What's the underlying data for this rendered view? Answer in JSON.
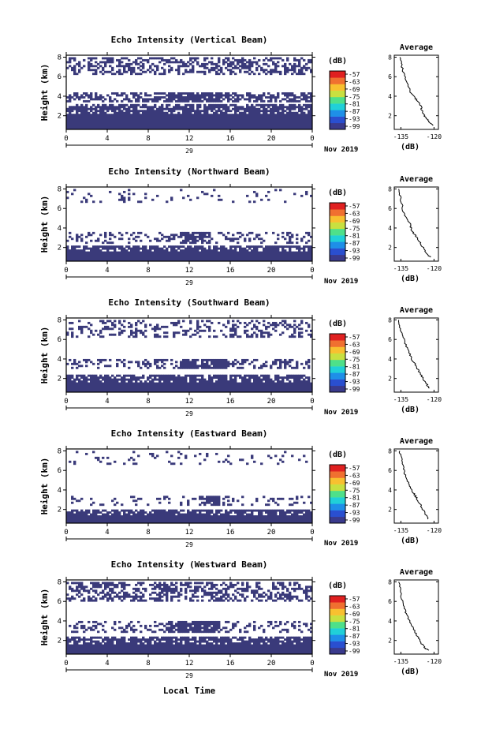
{
  "figure": {
    "xlabel": "Local Time",
    "colorbar_unit": "(dB)",
    "colorbar_ticks": [
      "-57",
      "-63",
      "-69",
      "-75",
      "-81",
      "-87",
      "-93",
      "-99"
    ],
    "colorbar_colors": [
      "#3a3a8c",
      "#2a4fd0",
      "#1e8fe8",
      "#20d0d8",
      "#4ee08a",
      "#c8e040",
      "#f8c030",
      "#f07030",
      "#e02020"
    ],
    "date_label": "Nov 2019",
    "day_label": "29",
    "mask_color": "#3a3a7a"
  },
  "chart_data": [
    {
      "type": "heatmap",
      "title": "Echo Intensity (Vertical Beam)",
      "ylabel": "Height (km)",
      "x_ticks": [
        "0",
        "4",
        "8",
        "12",
        "16",
        "20",
        "0"
      ],
      "y_ticks": [
        "2",
        "4",
        "6",
        "8"
      ],
      "xlim": [
        0,
        24
      ],
      "ylim": [
        0.6,
        8.2
      ],
      "profile": {
        "title": "Average",
        "xlabel": "(dB)",
        "x_ticks": [
          "-135",
          "-120"
        ],
        "y_ticks": [
          "2",
          "4",
          "6",
          "8"
        ],
        "xlim": [
          -138,
          -118
        ],
        "ylim": [
          0.6,
          8.2
        ],
        "x": [
          -135.5,
          -135,
          -134.5,
          -133.8,
          -133,
          -132,
          -131,
          -130,
          -129,
          -128,
          -127,
          -126,
          -125.5,
          -125,
          -124,
          -123,
          -122,
          -120.5
        ],
        "y": [
          8,
          7.5,
          7,
          6.4,
          5.8,
          5.2,
          4.6,
          4.2,
          3.9,
          3.7,
          3.4,
          3.0,
          2.6,
          2.2,
          1.9,
          1.6,
          1.3,
          1.0
        ]
      }
    },
    {
      "type": "heatmap",
      "title": "Echo Intensity (Northward Beam)",
      "ylabel": "Height (km)",
      "x_ticks": [
        "0",
        "4",
        "8",
        "12",
        "16",
        "20",
        "0"
      ],
      "y_ticks": [
        "2",
        "4",
        "6",
        "8"
      ],
      "xlim": [
        0,
        24
      ],
      "ylim": [
        0.6,
        8.2
      ],
      "profile": {
        "title": "Average",
        "xlabel": "(dB)",
        "x_ticks": [
          "-135",
          "-120"
        ],
        "y_ticks": [
          "2",
          "4",
          "6",
          "8"
        ],
        "xlim": [
          -138,
          -118
        ],
        "ylim": [
          0.6,
          8.2
        ],
        "x": [
          -136,
          -135.5,
          -135,
          -134.5,
          -134,
          -133,
          -132,
          -131,
          -130.5,
          -130,
          -129,
          -128,
          -127,
          -126,
          -125,
          -124,
          -123,
          -121.5
        ],
        "y": [
          8,
          7.4,
          6.8,
          6.3,
          5.8,
          5.3,
          4.9,
          4.5,
          4.1,
          3.7,
          3.4,
          3.1,
          2.8,
          2.4,
          2.0,
          1.6,
          1.3,
          1.0
        ]
      }
    },
    {
      "type": "heatmap",
      "title": "Echo Intensity (Southward Beam)",
      "ylabel": "Height (km)",
      "x_ticks": [
        "0",
        "4",
        "8",
        "12",
        "16",
        "20",
        "0"
      ],
      "y_ticks": [
        "2",
        "4",
        "6",
        "8"
      ],
      "xlim": [
        0,
        24
      ],
      "ylim": [
        0.6,
        8.2
      ],
      "profile": {
        "title": "Average",
        "xlabel": "(dB)",
        "x_ticks": [
          "-135",
          "-120"
        ],
        "y_ticks": [
          "2",
          "4",
          "6",
          "8"
        ],
        "xlim": [
          -138,
          -118
        ],
        "ylim": [
          0.6,
          8.2
        ],
        "x": [
          -136,
          -135.5,
          -135,
          -134,
          -133,
          -132,
          -131,
          -130,
          -129,
          -128,
          -127,
          -126,
          -125,
          -124,
          -123,
          -122.5
        ],
        "y": [
          8,
          7.4,
          6.8,
          6.2,
          5.6,
          5.0,
          4.5,
          4.0,
          3.6,
          3.2,
          2.8,
          2.4,
          2.0,
          1.6,
          1.3,
          1.0
        ]
      }
    },
    {
      "type": "heatmap",
      "title": "Echo Intensity (Eastward Beam)",
      "ylabel": "Height (km)",
      "x_ticks": [
        "0",
        "4",
        "8",
        "12",
        "16",
        "20",
        "0"
      ],
      "y_ticks": [
        "2",
        "4",
        "6",
        "8"
      ],
      "xlim": [
        0,
        24
      ],
      "ylim": [
        0.6,
        8.2
      ],
      "profile": {
        "title": "Average",
        "xlabel": "(dB)",
        "x_ticks": [
          "-135",
          "-120"
        ],
        "y_ticks": [
          "2",
          "4",
          "6",
          "8"
        ],
        "xlim": [
          -138,
          -118
        ],
        "ylim": [
          0.6,
          8.2
        ],
        "x": [
          -135.5,
          -135,
          -134.5,
          -134,
          -133.5,
          -133,
          -132,
          -131,
          -130,
          -129,
          -128,
          -127,
          -126,
          -125,
          -124,
          -122.5
        ],
        "y": [
          8,
          7.5,
          7.0,
          6.4,
          5.9,
          5.4,
          4.9,
          4.4,
          4.0,
          3.6,
          3.2,
          2.8,
          2.4,
          2.0,
          1.5,
          1.0
        ]
      }
    },
    {
      "type": "heatmap",
      "title": "Echo Intensity (Westward Beam)",
      "ylabel": "Height (km)",
      "x_ticks": [
        "0",
        "4",
        "8",
        "12",
        "16",
        "20",
        "0"
      ],
      "y_ticks": [
        "2",
        "4",
        "6",
        "8"
      ],
      "xlim": [
        0,
        24
      ],
      "ylim": [
        0.6,
        8.2
      ],
      "profile": {
        "title": "Average",
        "xlabel": "(dB)",
        "x_ticks": [
          "-135",
          "-120"
        ],
        "y_ticks": [
          "2",
          "4",
          "6",
          "8"
        ],
        "xlim": [
          -138,
          -118
        ],
        "ylim": [
          0.6,
          8.2
        ],
        "x": [
          -136,
          -135.5,
          -135,
          -134.5,
          -134,
          -133,
          -132,
          -131,
          -130,
          -129,
          -128,
          -127,
          -126,
          -125,
          -124,
          -122.5
        ],
        "y": [
          8,
          7.4,
          6.8,
          6.2,
          5.6,
          5.0,
          4.5,
          4.0,
          3.5,
          3.0,
          2.6,
          2.2,
          1.8,
          1.5,
          1.2,
          1.0
        ]
      }
    }
  ]
}
